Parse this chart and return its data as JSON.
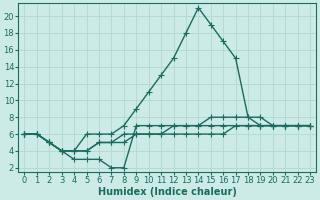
{
  "xlabel": "Humidex (Indice chaleur)",
  "background_color": "#cceae6",
  "grid_color": "#b0d8d4",
  "line_color": "#1a6b60",
  "xlim": [
    -0.5,
    23.5
  ],
  "ylim": [
    1.5,
    21.5
  ],
  "xticks": [
    0,
    1,
    2,
    3,
    4,
    5,
    6,
    7,
    8,
    9,
    10,
    11,
    12,
    13,
    14,
    15,
    16,
    17,
    18,
    19,
    20,
    21,
    22,
    23
  ],
  "yticks": [
    2,
    4,
    6,
    8,
    10,
    12,
    14,
    16,
    18,
    20
  ],
  "series": [
    {
      "x": [
        0,
        1,
        2,
        3,
        4,
        5,
        6,
        7,
        8,
        9,
        10,
        11,
        12,
        13,
        14,
        15,
        16,
        17,
        18,
        19,
        20,
        21,
        22,
        23
      ],
      "y": [
        6,
        6,
        5,
        4,
        4,
        6,
        6,
        6,
        7,
        9,
        11,
        13,
        15,
        18,
        21,
        19,
        17,
        15,
        8,
        8,
        7,
        7,
        7,
        7
      ]
    },
    {
      "x": [
        0,
        1,
        2,
        3,
        4,
        5,
        6,
        7,
        8,
        9,
        10,
        11,
        12,
        13,
        14,
        15,
        16,
        17,
        18,
        19,
        20,
        21,
        22,
        23
      ],
      "y": [
        6,
        6,
        5,
        4,
        4,
        4,
        5,
        5,
        6,
        6,
        6,
        6,
        7,
        7,
        7,
        8,
        8,
        8,
        8,
        7,
        7,
        7,
        7,
        7
      ]
    },
    {
      "x": [
        0,
        1,
        2,
        3,
        4,
        5,
        6,
        7,
        8,
        9,
        10,
        11,
        12,
        13,
        14,
        15,
        16,
        17,
        18,
        19,
        20,
        21,
        22,
        23
      ],
      "y": [
        6,
        6,
        5,
        4,
        3,
        3,
        3,
        2,
        2,
        7,
        7,
        7,
        7,
        7,
        7,
        7,
        7,
        7,
        7,
        7,
        7,
        7,
        7,
        7
      ]
    },
    {
      "x": [
        0,
        1,
        2,
        3,
        4,
        5,
        6,
        7,
        8,
        9,
        10,
        11,
        12,
        13,
        14,
        15,
        16,
        17,
        18,
        19,
        20,
        21,
        22,
        23
      ],
      "y": [
        6,
        6,
        5,
        4,
        4,
        4,
        5,
        5,
        5,
        6,
        6,
        6,
        6,
        6,
        6,
        6,
        6,
        7,
        7,
        7,
        7,
        7,
        7,
        7
      ]
    }
  ],
  "marker": "+",
  "markersize": 4,
  "linewidth": 1.0,
  "font_size": 6,
  "label_font_size": 7
}
